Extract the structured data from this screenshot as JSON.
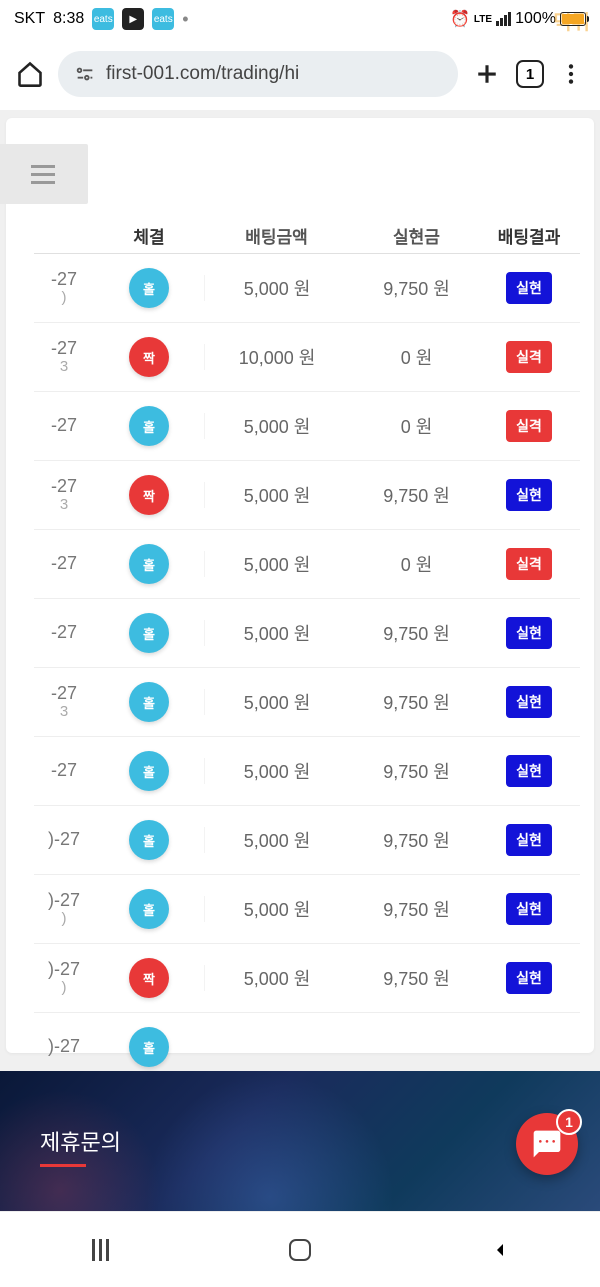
{
  "status": {
    "carrier": "SKT",
    "time": "8:38",
    "lte": "LTE",
    "battery": "100%"
  },
  "browser": {
    "url": "first-001.com/trading/hi",
    "tab_count": "1"
  },
  "table": {
    "headers": {
      "badge": "체결",
      "amount": "배팅금액",
      "realized": "실현금",
      "result": "배팅결과"
    },
    "currency_suffix": " 원",
    "rows": [
      {
        "date": "-27",
        "sub": ")",
        "badge_type": "blue",
        "badge_label": "홀",
        "amount": "5,000",
        "realized": "9,750",
        "result_type": "blue",
        "result_label": "실현"
      },
      {
        "date": "-27",
        "sub": "3",
        "badge_type": "red",
        "badge_label": "짝",
        "amount": "10,000",
        "realized": "0",
        "result_type": "red",
        "result_label": "실격"
      },
      {
        "date": "-27",
        "sub": "",
        "badge_type": "blue",
        "badge_label": "홀",
        "amount": "5,000",
        "realized": "0",
        "result_type": "red",
        "result_label": "실격"
      },
      {
        "date": "-27",
        "sub": "3",
        "badge_type": "red",
        "badge_label": "짝",
        "amount": "5,000",
        "realized": "9,750",
        "result_type": "blue",
        "result_label": "실현"
      },
      {
        "date": "-27",
        "sub": "",
        "badge_type": "blue",
        "badge_label": "홀",
        "amount": "5,000",
        "realized": "0",
        "result_type": "red",
        "result_label": "실격"
      },
      {
        "date": "-27",
        "sub": "",
        "badge_type": "blue",
        "badge_label": "홀",
        "amount": "5,000",
        "realized": "9,750",
        "result_type": "blue",
        "result_label": "실현"
      },
      {
        "date": "-27",
        "sub": "3",
        "badge_type": "blue",
        "badge_label": "홀",
        "amount": "5,000",
        "realized": "9,750",
        "result_type": "blue",
        "result_label": "실현"
      },
      {
        "date": "-27",
        "sub": "",
        "badge_type": "blue",
        "badge_label": "홀",
        "amount": "5,000",
        "realized": "9,750",
        "result_type": "blue",
        "result_label": "실현"
      },
      {
        "date": ")-27",
        "sub": "",
        "badge_type": "blue",
        "badge_label": "홀",
        "amount": "5,000",
        "realized": "9,750",
        "result_type": "blue",
        "result_label": "실현"
      },
      {
        "date": ")-27",
        "sub": ")",
        "badge_type": "blue",
        "badge_label": "홀",
        "amount": "5,000",
        "realized": "9,750",
        "result_type": "blue",
        "result_label": "실현"
      },
      {
        "date": ")-27",
        "sub": ")",
        "badge_type": "red",
        "badge_label": "짝",
        "amount": "5,000",
        "realized": "9,750",
        "result_type": "blue",
        "result_label": "실현"
      },
      {
        "date": ")-27",
        "sub": "",
        "badge_type": "blue",
        "badge_label": "홀",
        "amount": "",
        "realized": "",
        "result_type": "blue",
        "result_label": ""
      }
    ]
  },
  "footer": {
    "title": "제휴문의",
    "fab_badge": "1"
  },
  "colors": {
    "badge_blue": "#3dbce0",
    "badge_red": "#e83838",
    "pill_blue": "#1313d8",
    "pill_red": "#e83838"
  }
}
